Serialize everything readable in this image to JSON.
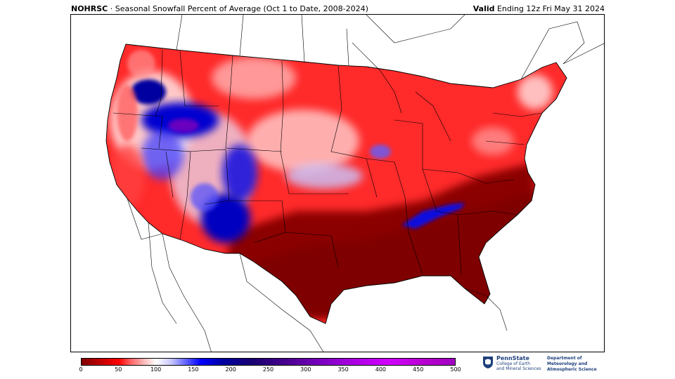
{
  "header": {
    "org": "NOHRSC",
    "separator": " · ",
    "title": "Seasonal Snowfall Percent of Average (Oct 1 to Date, 2008-2024)",
    "valid_label": "Valid",
    "valid_text": " Ending 12z Fri May 31 2024"
  },
  "colorbar": {
    "ticks": [
      "0",
      "50",
      "100",
      "150",
      "200",
      "250",
      "300",
      "350",
      "400",
      "450",
      "500"
    ],
    "min": 0,
    "max": 500,
    "colors": {
      "far_below": "#7f0000",
      "below": "#ff0000",
      "average": "#ffffff",
      "above": "#0000ff",
      "far_above": "#a000c0"
    }
  },
  "logos": {
    "psu_name": "PennState",
    "psu_line1": "College of Earth",
    "psu_line2": "and Mineral Sciences",
    "dept_line1": "Department of",
    "dept_line2": "Meteorology and",
    "dept_line3": "Atmospheric Science"
  },
  "map": {
    "region": "Contiguous United States",
    "icon": "map-icon"
  }
}
